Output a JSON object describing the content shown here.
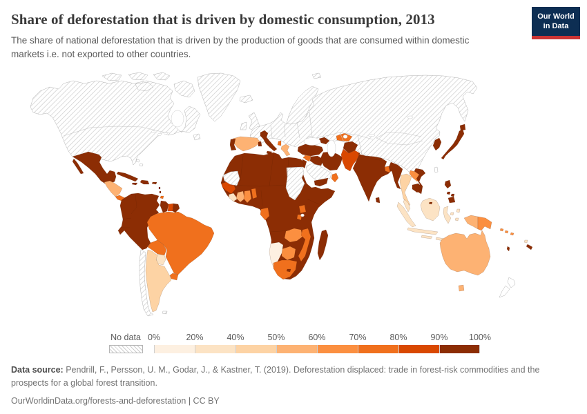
{
  "header": {
    "title": "Share of deforestation that is driven by domestic consumption, 2013",
    "subtitle": "The share of national deforestation that is driven by the production of goods that are consumed within domestic markets i.e. not exported to other countries."
  },
  "logo": {
    "line1": "Our World",
    "line2": "in Data",
    "bg_color": "#0d2e53",
    "stripe_color": "#cb3434"
  },
  "legend": {
    "no_data_label": "No data",
    "ticks": [
      "0%",
      "20%",
      "40%",
      "50%",
      "60%",
      "70%",
      "80%",
      "90%",
      "100%"
    ],
    "bins": [
      {
        "range": "0-20",
        "color": "#fdf0e1"
      },
      {
        "range": "20-40",
        "color": "#fce3c4"
      },
      {
        "range": "40-50",
        "color": "#fdd3a4"
      },
      {
        "range": "50-60",
        "color": "#fdb273"
      },
      {
        "range": "60-70",
        "color": "#fb8f40"
      },
      {
        "range": "70-80",
        "color": "#f0701d"
      },
      {
        "range": "80-90",
        "color": "#d94801"
      },
      {
        "range": "90-100",
        "color": "#8c2d04"
      }
    ]
  },
  "footer": {
    "source_label": "Data source:",
    "source_text": " Pendrill, F., Persson, U. M., Godar, J., & Kastner, T. (2019). Deforestation displaced: trade in forest-risk commodities and the prospects for a global forest transition.",
    "link_line": "OurWorldinData.org/forests-and-deforestation | CC BY"
  },
  "chart_data": {
    "type": "choropleth_map",
    "title": "Share of deforestation that is driven by domestic consumption, 2013",
    "year": 2013,
    "unit": "%",
    "legend_thresholds": [
      0,
      20,
      40,
      50,
      60,
      70,
      80,
      90,
      100
    ],
    "no_data_style": "diagonal-hatch",
    "palette": {
      "0-20": "#fdf0e1",
      "20-40": "#fce3c4",
      "40-50": "#fdd3a4",
      "50-60": "#fdb273",
      "60-70": "#fb8f40",
      "70-80": "#f0701d",
      "80-90": "#d94801",
      "90-100": "#8c2d04"
    },
    "regions": {
      "canada-usa-alaska": "no-data",
      "greenland": "no-data",
      "arctic-island-1": "no-data",
      "arctic-island-2": "no-data",
      "arctic-island-3": "no-data",
      "victoria-island": "no-data",
      "baffin-island": "no-data",
      "iceland": "no-data",
      "uk": "no-data",
      "ireland": "no-data",
      "scandinavia": "no-data",
      "eurasia": "no-data",
      "svalbard": "no-data",
      "newfoundland": "no-data",
      "bahamas": "no-data-white",
      "mexico": "90-100",
      "baja-california": "90-100",
      "guatemala-honduras-nicaragua": "50-60",
      "costa-rica-panama": "70-80",
      "cuba": "90-100",
      "hispaniola": "90-100",
      "jamaica": "90-100",
      "puerto-rico": "90-100",
      "lesser-antilles": "90-100",
      "trinidad": "70-80",
      "colombia-venezuela-peru-ecuador": "90-100",
      "guyana": "90-100",
      "suriname": "80-90",
      "french-guiana": "90-100",
      "brazil": "70-80",
      "bolivia": "70-80",
      "paraguay": "20-40",
      "uruguay": "70-80",
      "argentina": "40-50",
      "chile": "no-data",
      "falkland-islands": "no-data",
      "spain": "50-60",
      "portugal": "90-100",
      "italy": "90-100",
      "sicily": "90-100",
      "sardinia": "90-100",
      "greece": "50-60",
      "crete": "50-60",
      "albania": "70-80",
      "turkey": "90-100",
      "cyprus": "70-80",
      "caucasus": "90-100",
      "syria": "70-80",
      "israel-jordan": "90-100",
      "iraq": "90-100",
      "iran": "90-100",
      "saudi-arabia": "no-data",
      "yemen": "90-100",
      "oman": "70-80",
      "turkmenistan-uzbekistan": "70-80",
      "afghanistan": "90-100",
      "pakistan": "80-90",
      "india": "90-100",
      "bangladesh": "70-80",
      "sri-lanka": "90-100",
      "north-africa": "90-100",
      "western-sahara-mauritania": "no-data",
      "senegal-guinea": "80-90",
      "sierra-leone-liberia": "20-40",
      "ivory-coast": "50-60",
      "ghana": "60-70",
      "togo-benin": "70-80",
      "gabon": "70-80",
      "sudan-south-sudan": "no-data",
      "uganda": "70-80",
      "rwanda-burundi": "70-80",
      "zambia": "60-70",
      "malawi-mozambique": "70-80",
      "botswana": "60-70",
      "namibia": "0-20",
      "south-africa": "70-80",
      "lesotho": "90-100",
      "madagascar": "90-100",
      "myanmar": "90-100",
      "thailand": "40-50",
      "laos": "60-70",
      "vietnam": "90-100",
      "cambodia": "90-100",
      "malaysia": "20-40",
      "sumatra": "20-40",
      "java": "20-40",
      "borneo": "20-40",
      "brunei": "90-100",
      "sulawesi": "20-40",
      "lesser-sunda-1": "20-40",
      "lesser-sunda-2": "20-40",
      "moluccas-1": "20-40",
      "moluccas-2": "20-40",
      "halmahera": "20-40",
      "papua-indonesia": "50-60",
      "papua-new-guinea": "60-70",
      "philippines-luzon": "90-100",
      "philippines-visayas-1": "90-100",
      "philippines-visayas-2": "90-100",
      "philippines-mindanao": "90-100",
      "japan-honshu": "90-100",
      "japan-hokkaido": "90-100",
      "korea": "90-100",
      "taiwan": "no-data-white",
      "australia": "50-60",
      "tasmania": "50-60",
      "new-zealand-north": "no-data-white",
      "new-zealand-south": "no-data-white",
      "solomon-islands": "60-70",
      "vanuatu": "90-100",
      "new-caledonia": "90-100",
      "fiji": "20-40"
    }
  }
}
